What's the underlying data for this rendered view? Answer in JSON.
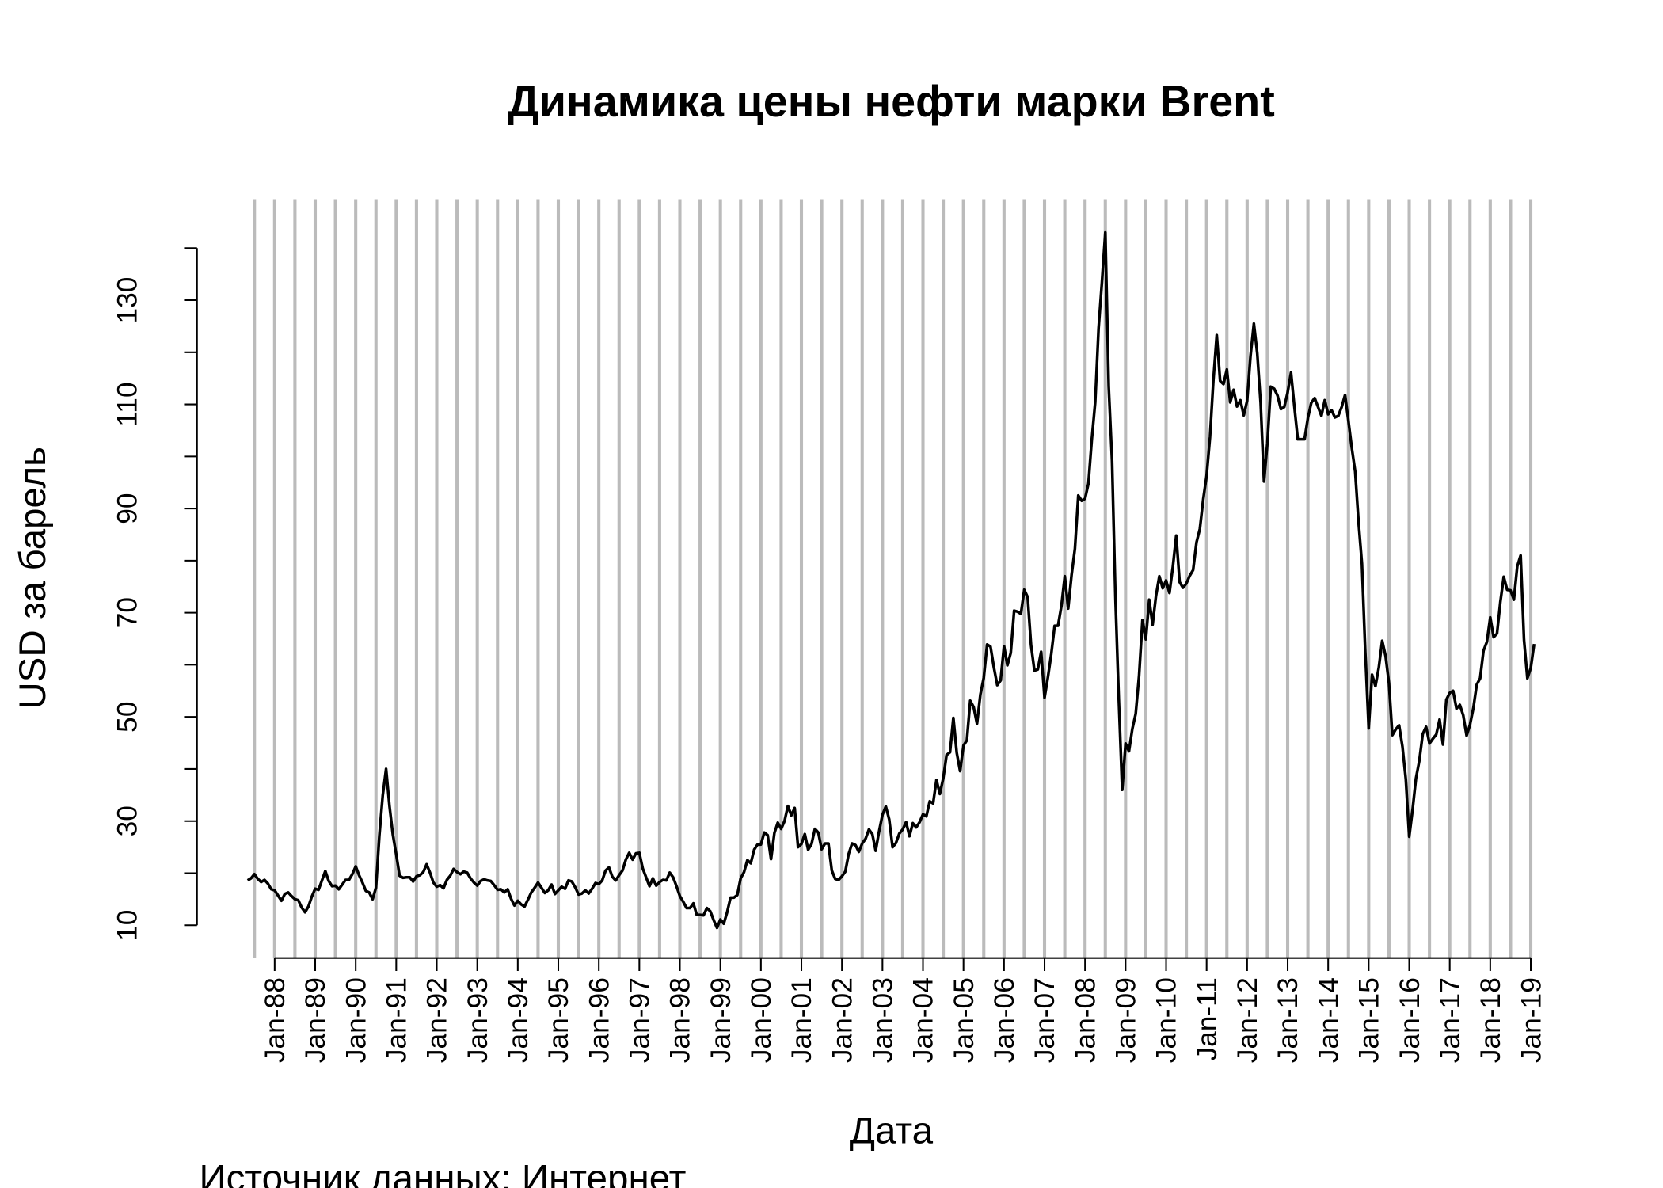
{
  "chart_data": {
    "type": "line",
    "title": "Динамика цены нефти марки Brent",
    "xlabel": "Дата",
    "ylabel": "USD за барель",
    "source": "Источник данных: Интернет",
    "color": "#000000",
    "grid_color": "#bbbbbb",
    "xlim": [
      "1986-02",
      "2020-06"
    ],
    "ylim": [
      3.7,
      149.4
    ],
    "yticks": [
      10,
      30,
      50,
      70,
      90,
      110,
      130
    ],
    "y_minor_ticks": [
      20,
      40,
      60,
      80,
      100,
      120,
      140
    ],
    "xticks": [
      {
        "value": "1988-01",
        "label": "Jan-88"
      },
      {
        "value": "1989-01",
        "label": "Jan-89"
      },
      {
        "value": "1990-01",
        "label": "Jan-90"
      },
      {
        "value": "1991-01",
        "label": "Jan-91"
      },
      {
        "value": "1992-01",
        "label": "Jan-92"
      },
      {
        "value": "1993-01",
        "label": "Jan-93"
      },
      {
        "value": "1994-01",
        "label": "Jan-94"
      },
      {
        "value": "1995-01",
        "label": "Jan-95"
      },
      {
        "value": "1996-01",
        "label": "Jan-96"
      },
      {
        "value": "1997-01",
        "label": "Jan-97"
      },
      {
        "value": "1998-01",
        "label": "Jan-98"
      },
      {
        "value": "1999-01",
        "label": "Jan-99"
      },
      {
        "value": "2000-01",
        "label": "Jan-00"
      },
      {
        "value": "2001-01",
        "label": "Jan-01"
      },
      {
        "value": "2002-01",
        "label": "Jan-02"
      },
      {
        "value": "2003-01",
        "label": "Jan-03"
      },
      {
        "value": "2004-01",
        "label": "Jan-04"
      },
      {
        "value": "2005-01",
        "label": "Jan-05"
      },
      {
        "value": "2006-01",
        "label": "Jan-06"
      },
      {
        "value": "2007-01",
        "label": "Jan-07"
      },
      {
        "value": "2008-01",
        "label": "Jan-08"
      },
      {
        "value": "2009-01",
        "label": "Jan-09"
      },
      {
        "value": "2010-01",
        "label": "Jan-10"
      },
      {
        "value": "2011-01",
        "label": "Jan-11"
      },
      {
        "value": "2012-01",
        "label": "Jan-12"
      },
      {
        "value": "2013-01",
        "label": "Jan-13"
      },
      {
        "value": "2014-01",
        "label": "Jan-14"
      },
      {
        "value": "2015-01",
        "label": "Jan-15"
      },
      {
        "value": "2016-01",
        "label": "Jan-16"
      },
      {
        "value": "2017-01",
        "label": "Jan-17"
      },
      {
        "value": "2018-01",
        "label": "Jan-18"
      },
      {
        "value": "2019-01",
        "label": "Jan-19"
      }
    ],
    "xgrid": [
      "1987-07",
      "1988-01",
      "1988-07",
      "1989-01",
      "1989-07",
      "1990-01",
      "1990-07",
      "1991-01",
      "1991-07",
      "1992-01",
      "1992-07",
      "1993-01",
      "1993-07",
      "1994-01",
      "1994-07",
      "1995-01",
      "1995-07",
      "1996-01",
      "1996-07",
      "1997-01",
      "1997-07",
      "1998-01",
      "1998-07",
      "1999-01",
      "1999-07",
      "2000-01",
      "2000-07",
      "2001-01",
      "2001-07",
      "2002-01",
      "2002-07",
      "2003-01",
      "2003-07",
      "2004-01",
      "2004-07",
      "2005-01",
      "2005-07",
      "2006-01",
      "2006-07",
      "2007-01",
      "2007-07",
      "2008-01",
      "2008-07",
      "2009-01",
      "2009-07",
      "2010-01",
      "2010-07",
      "2011-01",
      "2011-07",
      "2012-01",
      "2012-07",
      "2013-01",
      "2013-07",
      "2014-01",
      "2014-07",
      "2015-01",
      "2015-07",
      "2016-01",
      "2016-07",
      "2017-01",
      "2017-07",
      "2018-01",
      "2018-07",
      "2019-01"
    ],
    "x": [
      "1987-05",
      "1987-06",
      "1987-07",
      "1987-08",
      "1987-09",
      "1987-10",
      "1987-11",
      "1987-12",
      "1988-01",
      "1988-02",
      "1988-03",
      "1988-04",
      "1988-05",
      "1988-06",
      "1988-07",
      "1988-08",
      "1988-09",
      "1988-10",
      "1988-11",
      "1988-12",
      "1989-01",
      "1989-02",
      "1989-03",
      "1989-04",
      "1989-05",
      "1989-06",
      "1989-07",
      "1989-08",
      "1989-09",
      "1989-10",
      "1989-11",
      "1989-12",
      "1990-01",
      "1990-02",
      "1990-03",
      "1990-04",
      "1990-05",
      "1990-06",
      "1990-07",
      "1990-08",
      "1990-09",
      "1990-10",
      "1990-11",
      "1990-12",
      "1991-01",
      "1991-02",
      "1991-03",
      "1991-04",
      "1991-05",
      "1991-06",
      "1991-07",
      "1991-08",
      "1991-09",
      "1991-10",
      "1991-11",
      "1991-12",
      "1992-01",
      "1992-02",
      "1992-03",
      "1992-04",
      "1992-05",
      "1992-06",
      "1992-07",
      "1992-08",
      "1992-09",
      "1992-10",
      "1992-11",
      "1992-12",
      "1993-01",
      "1993-02",
      "1993-03",
      "1993-04",
      "1993-05",
      "1993-06",
      "1993-07",
      "1993-08",
      "1993-09",
      "1993-10",
      "1993-11",
      "1993-12",
      "1994-01",
      "1994-02",
      "1994-03",
      "1994-04",
      "1994-05",
      "1994-06",
      "1994-07",
      "1994-08",
      "1994-09",
      "1994-10",
      "1994-11",
      "1994-12",
      "1995-01",
      "1995-02",
      "1995-03",
      "1995-04",
      "1995-05",
      "1995-06",
      "1995-07",
      "1995-08",
      "1995-09",
      "1995-10",
      "1995-11",
      "1995-12",
      "1996-01",
      "1996-02",
      "1996-03",
      "1996-04",
      "1996-05",
      "1996-06",
      "1996-07",
      "1996-08",
      "1996-09",
      "1996-10",
      "1996-11",
      "1996-12",
      "1997-01",
      "1997-02",
      "1997-03",
      "1997-04",
      "1997-05",
      "1997-06",
      "1997-07",
      "1997-08",
      "1997-09",
      "1997-10",
      "1997-11",
      "1997-12",
      "1998-01",
      "1998-02",
      "1998-03",
      "1998-04",
      "1998-05",
      "1998-06",
      "1998-07",
      "1998-08",
      "1998-09",
      "1998-10",
      "1998-11",
      "1998-12",
      "1999-01",
      "1999-02",
      "1999-03",
      "1999-04",
      "1999-05",
      "1999-06",
      "1999-07",
      "1999-08",
      "1999-09",
      "1999-10",
      "1999-11",
      "1999-12",
      "2000-01",
      "2000-02",
      "2000-03",
      "2000-04",
      "2000-05",
      "2000-06",
      "2000-07",
      "2000-08",
      "2000-09",
      "2000-10",
      "2000-11",
      "2000-12",
      "2001-01",
      "2001-02",
      "2001-03",
      "2001-04",
      "2001-05",
      "2001-06",
      "2001-07",
      "2001-08",
      "2001-09",
      "2001-10",
      "2001-11",
      "2001-12",
      "2002-01",
      "2002-02",
      "2002-03",
      "2002-04",
      "2002-05",
      "2002-06",
      "2002-07",
      "2002-08",
      "2002-09",
      "2002-10",
      "2002-11",
      "2002-12",
      "2003-01",
      "2003-02",
      "2003-03",
      "2003-04",
      "2003-05",
      "2003-06",
      "2003-07",
      "2003-08",
      "2003-09",
      "2003-10",
      "2003-11",
      "2003-12",
      "2004-01",
      "2004-02",
      "2004-03",
      "2004-04",
      "2004-05",
      "2004-06",
      "2004-07",
      "2004-08",
      "2004-09",
      "2004-10",
      "2004-11",
      "2004-12",
      "2005-01",
      "2005-02",
      "2005-03",
      "2005-04",
      "2005-05",
      "2005-06",
      "2005-07",
      "2005-08",
      "2005-09",
      "2005-10",
      "2005-11",
      "2005-12",
      "2006-01",
      "2006-02",
      "2006-03",
      "2006-04",
      "2006-05",
      "2006-06",
      "2006-07",
      "2006-08",
      "2006-09",
      "2006-10",
      "2006-11",
      "2006-12",
      "2007-01",
      "2007-02",
      "2007-03",
      "2007-04",
      "2007-05",
      "2007-06",
      "2007-07",
      "2007-08",
      "2007-09",
      "2007-10",
      "2007-11",
      "2007-12",
      "2008-01",
      "2008-02",
      "2008-03",
      "2008-04",
      "2008-05",
      "2008-06",
      "2008-07",
      "2008-08",
      "2008-09",
      "2008-10",
      "2008-11",
      "2008-12",
      "2009-01",
      "2009-02",
      "2009-03",
      "2009-04",
      "2009-05",
      "2009-06",
      "2009-07",
      "2009-08",
      "2009-09",
      "2009-10",
      "2009-11",
      "2009-12",
      "2010-01",
      "2010-02",
      "2010-03",
      "2010-04",
      "2010-05",
      "2010-06",
      "2010-07",
      "2010-08",
      "2010-09",
      "2010-10",
      "2010-11",
      "2010-12",
      "2011-01",
      "2011-02",
      "2011-03",
      "2011-04",
      "2011-05",
      "2011-06",
      "2011-07",
      "2011-08",
      "2011-09",
      "2011-10",
      "2011-11",
      "2011-12",
      "2012-01",
      "2012-02",
      "2012-03",
      "2012-04",
      "2012-05",
      "2012-06",
      "2012-07",
      "2012-08",
      "2012-09",
      "2012-10",
      "2012-11",
      "2012-12",
      "2013-01",
      "2013-02",
      "2013-03",
      "2013-04",
      "2013-05",
      "2013-06",
      "2013-07",
      "2013-08",
      "2013-09",
      "2013-10",
      "2013-11",
      "2013-12",
      "2014-01",
      "2014-02",
      "2014-03",
      "2014-04",
      "2014-05",
      "2014-06",
      "2014-07",
      "2014-08",
      "2014-09",
      "2014-10",
      "2014-11",
      "2014-12",
      "2015-01",
      "2015-02",
      "2015-03",
      "2015-04",
      "2015-05",
      "2015-06",
      "2015-07",
      "2015-08",
      "2015-09",
      "2015-10",
      "2015-11",
      "2015-12",
      "2016-01",
      "2016-02",
      "2016-03",
      "2016-04",
      "2016-05",
      "2016-06",
      "2016-07",
      "2016-08",
      "2016-09",
      "2016-10",
      "2016-11",
      "2016-12",
      "2017-01",
      "2017-02",
      "2017-03",
      "2017-04",
      "2017-05",
      "2017-06",
      "2017-07",
      "2017-08",
      "2017-09",
      "2017-10",
      "2017-11",
      "2017-12",
      "2018-01",
      "2018-02",
      "2018-03",
      "2018-04",
      "2018-05",
      "2018-06",
      "2018-07",
      "2018-08",
      "2018-09",
      "2018-10",
      "2018-11",
      "2018-12",
      "2019-01",
      "2019-02"
    ],
    "values": [
      18.6,
      19.0,
      19.8,
      18.9,
      18.3,
      18.7,
      18.0,
      16.9,
      16.7,
      15.7,
      14.7,
      16.0,
      16.3,
      15.6,
      15.0,
      14.8,
      13.4,
      12.5,
      13.6,
      15.5,
      17.0,
      16.8,
      18.6,
      20.4,
      18.5,
      17.5,
      17.6,
      16.9,
      17.8,
      18.7,
      18.7,
      19.8,
      21.3,
      19.6,
      18.2,
      16.6,
      16.3,
      15.0,
      17.2,
      27.2,
      34.9,
      40.0,
      32.9,
      27.4,
      23.6,
      19.5,
      19.1,
      19.2,
      19.2,
      18.4,
      19.4,
      19.6,
      20.2,
      21.7,
      20.1,
      18.2,
      17.4,
      17.7,
      17.1,
      18.7,
      19.5,
      20.8,
      20.2,
      19.8,
      20.3,
      20.1,
      19.0,
      18.2,
      17.6,
      18.5,
      18.8,
      18.6,
      18.5,
      17.7,
      16.8,
      16.9,
      16.3,
      16.9,
      15.1,
      13.8,
      14.7,
      14.0,
      13.6,
      14.9,
      16.3,
      17.2,
      18.2,
      17.2,
      16.2,
      16.7,
      17.8,
      16.0,
      16.7,
      17.4,
      17.0,
      18.6,
      18.4,
      17.3,
      15.9,
      16.1,
      16.7,
      16.1,
      17.0,
      18.1,
      17.9,
      18.6,
      20.5,
      21.1,
      19.3,
      18.6,
      19.6,
      20.5,
      22.6,
      23.9,
      22.6,
      23.8,
      23.9,
      20.9,
      19.2,
      17.5,
      19.0,
      17.6,
      18.3,
      18.7,
      18.6,
      20.1,
      19.2,
      17.5,
      15.6,
      14.5,
      13.3,
      13.3,
      14.2,
      12.0,
      12.0,
      11.9,
      13.3,
      12.7,
      11.0,
      9.5,
      11.1,
      10.3,
      12.5,
      15.3,
      15.3,
      15.8,
      19.0,
      20.2,
      22.5,
      21.9,
      24.5,
      25.5,
      25.5,
      27.8,
      27.3,
      22.7,
      27.7,
      29.7,
      28.5,
      30.0,
      32.9,
      31.1,
      32.5,
      25.0,
      25.6,
      27.5,
      24.5,
      25.6,
      28.5,
      27.8,
      24.6,
      25.7,
      25.7,
      20.5,
      18.9,
      18.7,
      19.4,
      20.3,
      23.7,
      25.7,
      25.4,
      24.1,
      25.7,
      26.6,
      28.4,
      27.5,
      24.3,
      28.0,
      31.2,
      32.8,
      30.3,
      25.0,
      25.8,
      27.6,
      28.4,
      29.8,
      27.1,
      29.6,
      28.8,
      29.8,
      31.3,
      30.9,
      33.8,
      33.4,
      37.9,
      35.2,
      38.2,
      42.7,
      43.2,
      49.8,
      43.1,
      39.6,
      44.5,
      45.5,
      53.1,
      51.9,
      48.7,
      54.3,
      57.5,
      63.9,
      63.5,
      59.5,
      56.1,
      57.0,
      63.6,
      59.9,
      62.3,
      70.4,
      70.2,
      69.8,
      74.4,
      73.0,
      63.8,
      58.9,
      59.1,
      62.5,
      53.7,
      57.6,
      62.1,
      67.5,
      67.5,
      71.3,
      77.0,
      70.8,
      77.2,
      82.3,
      92.5,
      91.5,
      91.9,
      94.8,
      103.3,
      110.4,
      124.6,
      133.5,
      143.0,
      113.4,
      99.1,
      72.8,
      53.2,
      36.0,
      44.9,
      43.4,
      47.7,
      50.6,
      57.9,
      68.6,
      64.9,
      72.5,
      67.7,
      73.2,
      77.0,
      74.7,
      76.2,
      73.8,
      78.8,
      84.8,
      75.9,
      74.8,
      75.6,
      77.1,
      78.2,
      83.5,
      86.1,
      91.8,
      96.3,
      103.7,
      114.6,
      123.3,
      114.5,
      113.9,
      116.7,
      110.4,
      112.8,
      109.6,
      110.8,
      107.9,
      110.7,
      119.3,
      125.5,
      119.8,
      110.3,
      95.2,
      102.6,
      113.4,
      113.0,
      111.7,
      109.1,
      109.5,
      112.3,
      116.1,
      109.5,
      103.3,
      103.3,
      103.3,
      107.4,
      110.3,
      111.2,
      109.5,
      107.8,
      110.8,
      108.1,
      108.9,
      107.5,
      107.8,
      109.5,
      111.8,
      106.8,
      101.6,
      97.1,
      87.4,
      79.4,
      62.3,
      47.8,
      58.1,
      55.9,
      59.5,
      64.6,
      61.7,
      56.5,
      46.5,
      47.6,
      48.4,
      44.3,
      38.0,
      27.0,
      32.2,
      38.2,
      41.6,
      46.7,
      48.1,
      44.9,
      45.8,
      46.6,
      49.5,
      44.7,
      53.3,
      54.6,
      55.0,
      51.6,
      52.3,
      50.3,
      46.4,
      48.5,
      51.7,
      56.2,
      57.4,
      62.7,
      64.4,
      69.1,
      65.3,
      66.0,
      72.1,
      76.9,
      74.4,
      74.3,
      72.5,
      78.9,
      81.0,
      64.8,
      57.4,
      59.4,
      64.0
    ]
  }
}
